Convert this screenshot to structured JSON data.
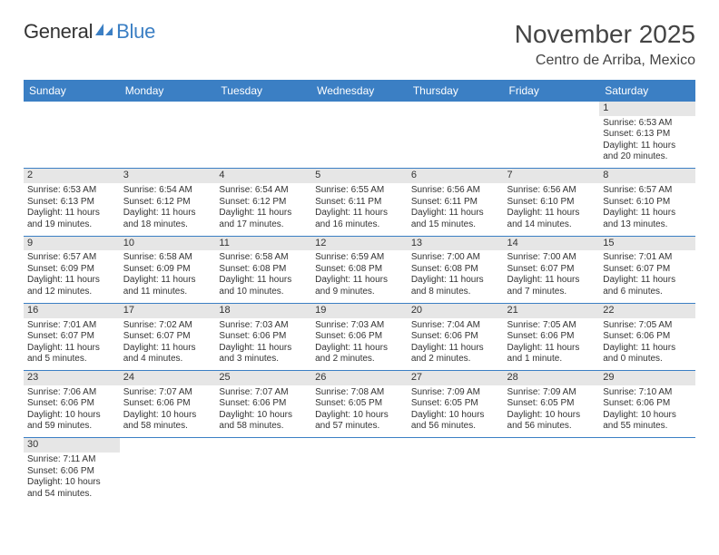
{
  "logo": {
    "part1": "General",
    "part2": "Blue"
  },
  "title": "November 2025",
  "location": "Centro de Arriba, Mexico",
  "headers": [
    "Sunday",
    "Monday",
    "Tuesday",
    "Wednesday",
    "Thursday",
    "Friday",
    "Saturday"
  ],
  "weeks": [
    [
      null,
      null,
      null,
      null,
      null,
      null,
      {
        "n": "1",
        "sr": "6:53 AM",
        "ss": "6:13 PM",
        "dl": "11 hours and 20 minutes."
      }
    ],
    [
      {
        "n": "2",
        "sr": "6:53 AM",
        "ss": "6:13 PM",
        "dl": "11 hours and 19 minutes."
      },
      {
        "n": "3",
        "sr": "6:54 AM",
        "ss": "6:12 PM",
        "dl": "11 hours and 18 minutes."
      },
      {
        "n": "4",
        "sr": "6:54 AM",
        "ss": "6:12 PM",
        "dl": "11 hours and 17 minutes."
      },
      {
        "n": "5",
        "sr": "6:55 AM",
        "ss": "6:11 PM",
        "dl": "11 hours and 16 minutes."
      },
      {
        "n": "6",
        "sr": "6:56 AM",
        "ss": "6:11 PM",
        "dl": "11 hours and 15 minutes."
      },
      {
        "n": "7",
        "sr": "6:56 AM",
        "ss": "6:10 PM",
        "dl": "11 hours and 14 minutes."
      },
      {
        "n": "8",
        "sr": "6:57 AM",
        "ss": "6:10 PM",
        "dl": "11 hours and 13 minutes."
      }
    ],
    [
      {
        "n": "9",
        "sr": "6:57 AM",
        "ss": "6:09 PM",
        "dl": "11 hours and 12 minutes."
      },
      {
        "n": "10",
        "sr": "6:58 AM",
        "ss": "6:09 PM",
        "dl": "11 hours and 11 minutes."
      },
      {
        "n": "11",
        "sr": "6:58 AM",
        "ss": "6:08 PM",
        "dl": "11 hours and 10 minutes."
      },
      {
        "n": "12",
        "sr": "6:59 AM",
        "ss": "6:08 PM",
        "dl": "11 hours and 9 minutes."
      },
      {
        "n": "13",
        "sr": "7:00 AM",
        "ss": "6:08 PM",
        "dl": "11 hours and 8 minutes."
      },
      {
        "n": "14",
        "sr": "7:00 AM",
        "ss": "6:07 PM",
        "dl": "11 hours and 7 minutes."
      },
      {
        "n": "15",
        "sr": "7:01 AM",
        "ss": "6:07 PM",
        "dl": "11 hours and 6 minutes."
      }
    ],
    [
      {
        "n": "16",
        "sr": "7:01 AM",
        "ss": "6:07 PM",
        "dl": "11 hours and 5 minutes."
      },
      {
        "n": "17",
        "sr": "7:02 AM",
        "ss": "6:07 PM",
        "dl": "11 hours and 4 minutes."
      },
      {
        "n": "18",
        "sr": "7:03 AM",
        "ss": "6:06 PM",
        "dl": "11 hours and 3 minutes."
      },
      {
        "n": "19",
        "sr": "7:03 AM",
        "ss": "6:06 PM",
        "dl": "11 hours and 2 minutes."
      },
      {
        "n": "20",
        "sr": "7:04 AM",
        "ss": "6:06 PM",
        "dl": "11 hours and 2 minutes."
      },
      {
        "n": "21",
        "sr": "7:05 AM",
        "ss": "6:06 PM",
        "dl": "11 hours and 1 minute."
      },
      {
        "n": "22",
        "sr": "7:05 AM",
        "ss": "6:06 PM",
        "dl": "11 hours and 0 minutes."
      }
    ],
    [
      {
        "n": "23",
        "sr": "7:06 AM",
        "ss": "6:06 PM",
        "dl": "10 hours and 59 minutes."
      },
      {
        "n": "24",
        "sr": "7:07 AM",
        "ss": "6:06 PM",
        "dl": "10 hours and 58 minutes."
      },
      {
        "n": "25",
        "sr": "7:07 AM",
        "ss": "6:06 PM",
        "dl": "10 hours and 58 minutes."
      },
      {
        "n": "26",
        "sr": "7:08 AM",
        "ss": "6:05 PM",
        "dl": "10 hours and 57 minutes."
      },
      {
        "n": "27",
        "sr": "7:09 AM",
        "ss": "6:05 PM",
        "dl": "10 hours and 56 minutes."
      },
      {
        "n": "28",
        "sr": "7:09 AM",
        "ss": "6:05 PM",
        "dl": "10 hours and 56 minutes."
      },
      {
        "n": "29",
        "sr": "7:10 AM",
        "ss": "6:06 PM",
        "dl": "10 hours and 55 minutes."
      }
    ],
    [
      {
        "n": "30",
        "sr": "7:11 AM",
        "ss": "6:06 PM",
        "dl": "10 hours and 54 minutes."
      },
      null,
      null,
      null,
      null,
      null,
      null
    ]
  ],
  "labels": {
    "sunrise": "Sunrise: ",
    "sunset": "Sunset: ",
    "daylight": "Daylight: "
  },
  "colors": {
    "header_bg": "#3b7fc4",
    "daynum_bg": "#e6e6e6",
    "border": "#3b7fc4"
  }
}
